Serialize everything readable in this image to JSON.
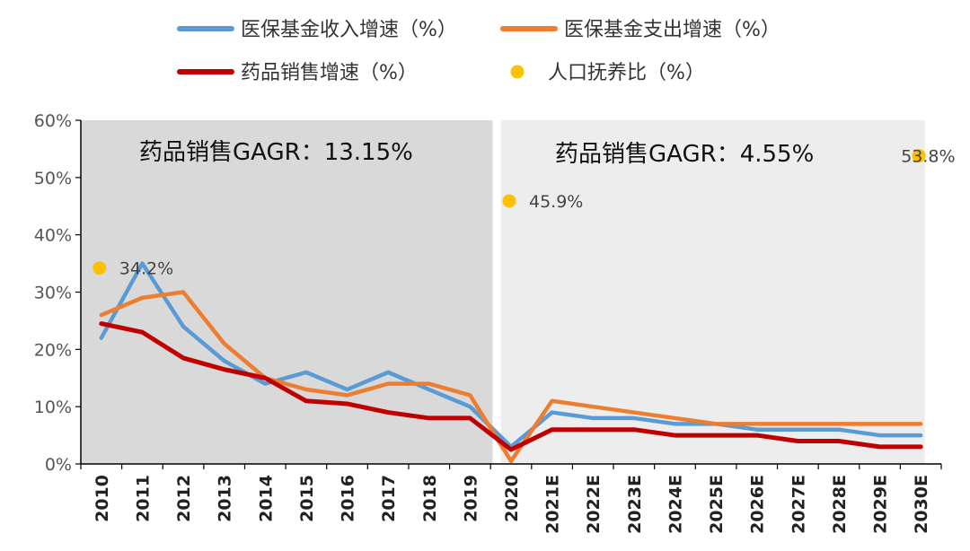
{
  "chart_data": {
    "type": "line",
    "categories": [
      "2010",
      "2011",
      "2012",
      "2013",
      "2014",
      "2015",
      "2016",
      "2017",
      "2018",
      "2019",
      "2020",
      "2021E",
      "2022E",
      "2023E",
      "2024E",
      "2025E",
      "2026E",
      "2027E",
      "2028E",
      "2029E",
      "2030E"
    ],
    "series": [
      {
        "name": "医保基金收入增速（%）",
        "color": "#5B9BD5",
        "values": [
          22,
          35,
          24,
          18,
          14,
          16,
          13,
          16,
          13,
          10,
          3,
          9,
          8,
          8,
          7,
          7,
          6,
          6,
          6,
          5,
          5
        ]
      },
      {
        "name": "医保基金支出增速（%）",
        "color": "#ED7D31",
        "values": [
          26,
          29,
          30,
          21,
          15,
          13,
          12,
          14,
          14,
          12,
          0.5,
          11,
          10,
          9,
          8,
          7,
          7,
          7,
          7,
          7,
          7
        ]
      },
      {
        "name": "药品销售增速（%）",
        "color": "#C00000",
        "values": [
          24.5,
          23,
          18.5,
          16.5,
          15,
          11,
          10.5,
          9,
          8,
          8,
          2.5,
          6,
          6,
          6,
          5,
          5,
          5,
          4,
          4,
          3,
          3
        ]
      }
    ],
    "scatter": {
      "name": "人口抚养比（%）",
      "color": "#FFC000",
      "points": [
        {
          "x": "2010",
          "y": 34.2,
          "label": "34.2%"
        },
        {
          "x": "2020",
          "y": 45.9,
          "label": "45.9%"
        },
        {
          "x": "2030E",
          "y": 53.8,
          "label": "53.8%"
        }
      ]
    },
    "ylim": [
      0,
      60
    ],
    "yticks": [
      0,
      10,
      20,
      30,
      40,
      50,
      60
    ],
    "ytick_labels": [
      "0%",
      "10%",
      "20%",
      "30%",
      "40%",
      "50%",
      "60%"
    ],
    "annotations": [
      {
        "text": "药品销售GAGR：13.15%"
      },
      {
        "text": "药品销售GAGR：4.55%"
      }
    ],
    "shading": [
      {
        "from": "2010",
        "to": "2019",
        "color": "#D9D9D9"
      },
      {
        "from": "2020",
        "to": "2030E",
        "color": "#EDEDED"
      }
    ],
    "legend": "top"
  }
}
